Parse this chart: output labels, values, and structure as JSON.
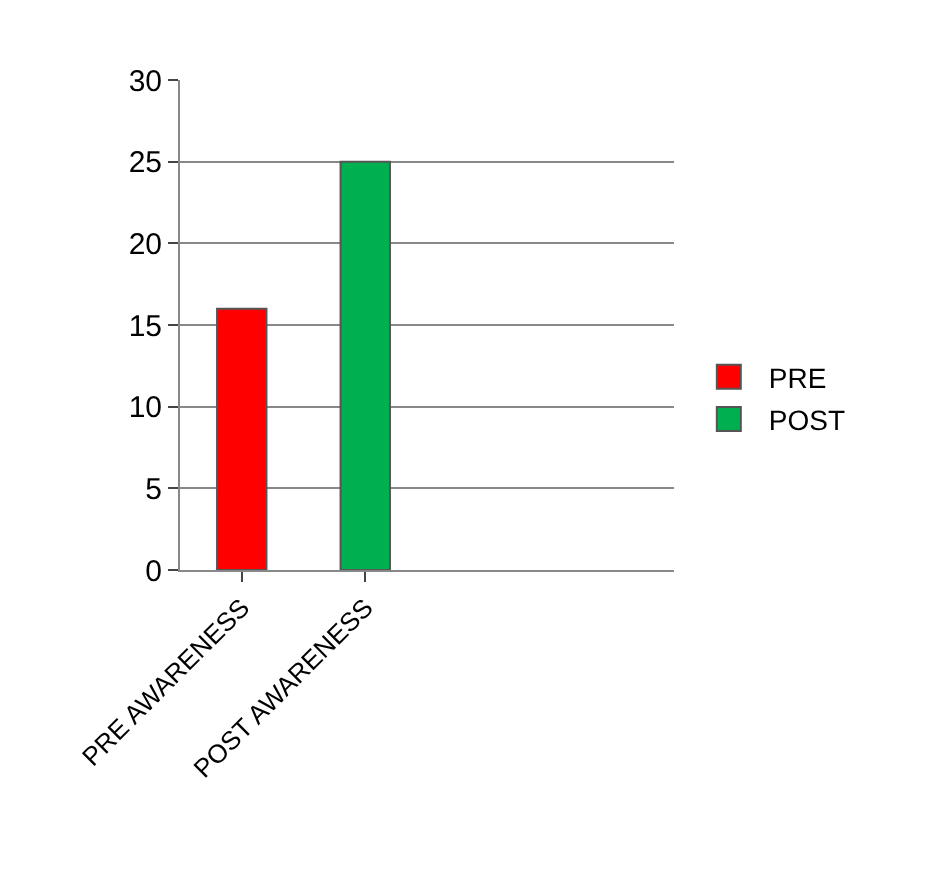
{
  "chart_data": {
    "type": "bar",
    "categories": [
      "PRE AWARENESS",
      "POST AWARENESS",
      null,
      null
    ],
    "series": [
      {
        "name": "PRE",
        "color": "#ff0000",
        "values": [
          16,
          null,
          null,
          null
        ]
      },
      {
        "name": "POST",
        "color": "#00b050",
        "values": [
          null,
          25,
          null,
          null
        ]
      }
    ],
    "ylim": [
      0,
      30
    ],
    "yticks": [
      0,
      5,
      10,
      15,
      20,
      25,
      30
    ],
    "grid": "y",
    "legend": "right"
  }
}
